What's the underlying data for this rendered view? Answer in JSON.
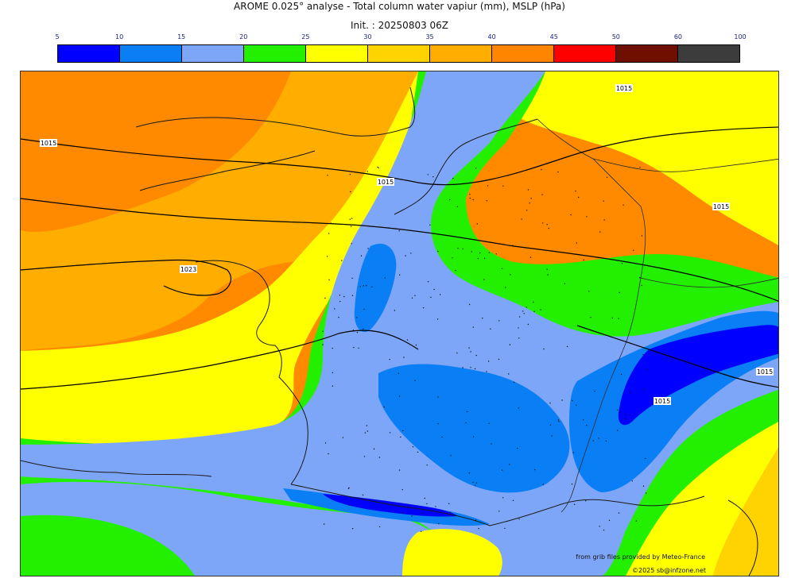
{
  "header": {
    "title": "AROME 0.025° analyse - Total column water vapiur (mm), MSLP (hPa)",
    "init": "Init. : 20250803 06Z"
  },
  "legend": {
    "ticks": [
      "5",
      "10",
      "15",
      "20",
      "25",
      "30",
      "35",
      "40",
      "45",
      "50",
      "60",
      "100"
    ],
    "colors": [
      "#0000ff",
      "#0a7ff5",
      "#7ea6f8",
      "#22f000",
      "#ffff00",
      "#ffd300",
      "#ffae00",
      "#ff8500",
      "#ff0000",
      "#6e0f00",
      "#3c3c3c"
    ]
  },
  "map": {
    "isobar_labels": [
      "1015",
      "1015",
      "1015",
      "1023",
      "1015",
      "1015",
      "1015"
    ],
    "palette": {
      "ocean_orange": "#ff8a00",
      "dark_orange": "#ffae00",
      "orange": "#ffd300",
      "yellow": "#ffff00",
      "green": "#22f000",
      "light_blue": "#7ea6f8",
      "blue": "#0a7ff5",
      "dark_blue": "#0000ff"
    }
  },
  "credits": {
    "line1": "from grib files provided by Meteo-France",
    "line2": "©2025 sb@infzone.net"
  }
}
